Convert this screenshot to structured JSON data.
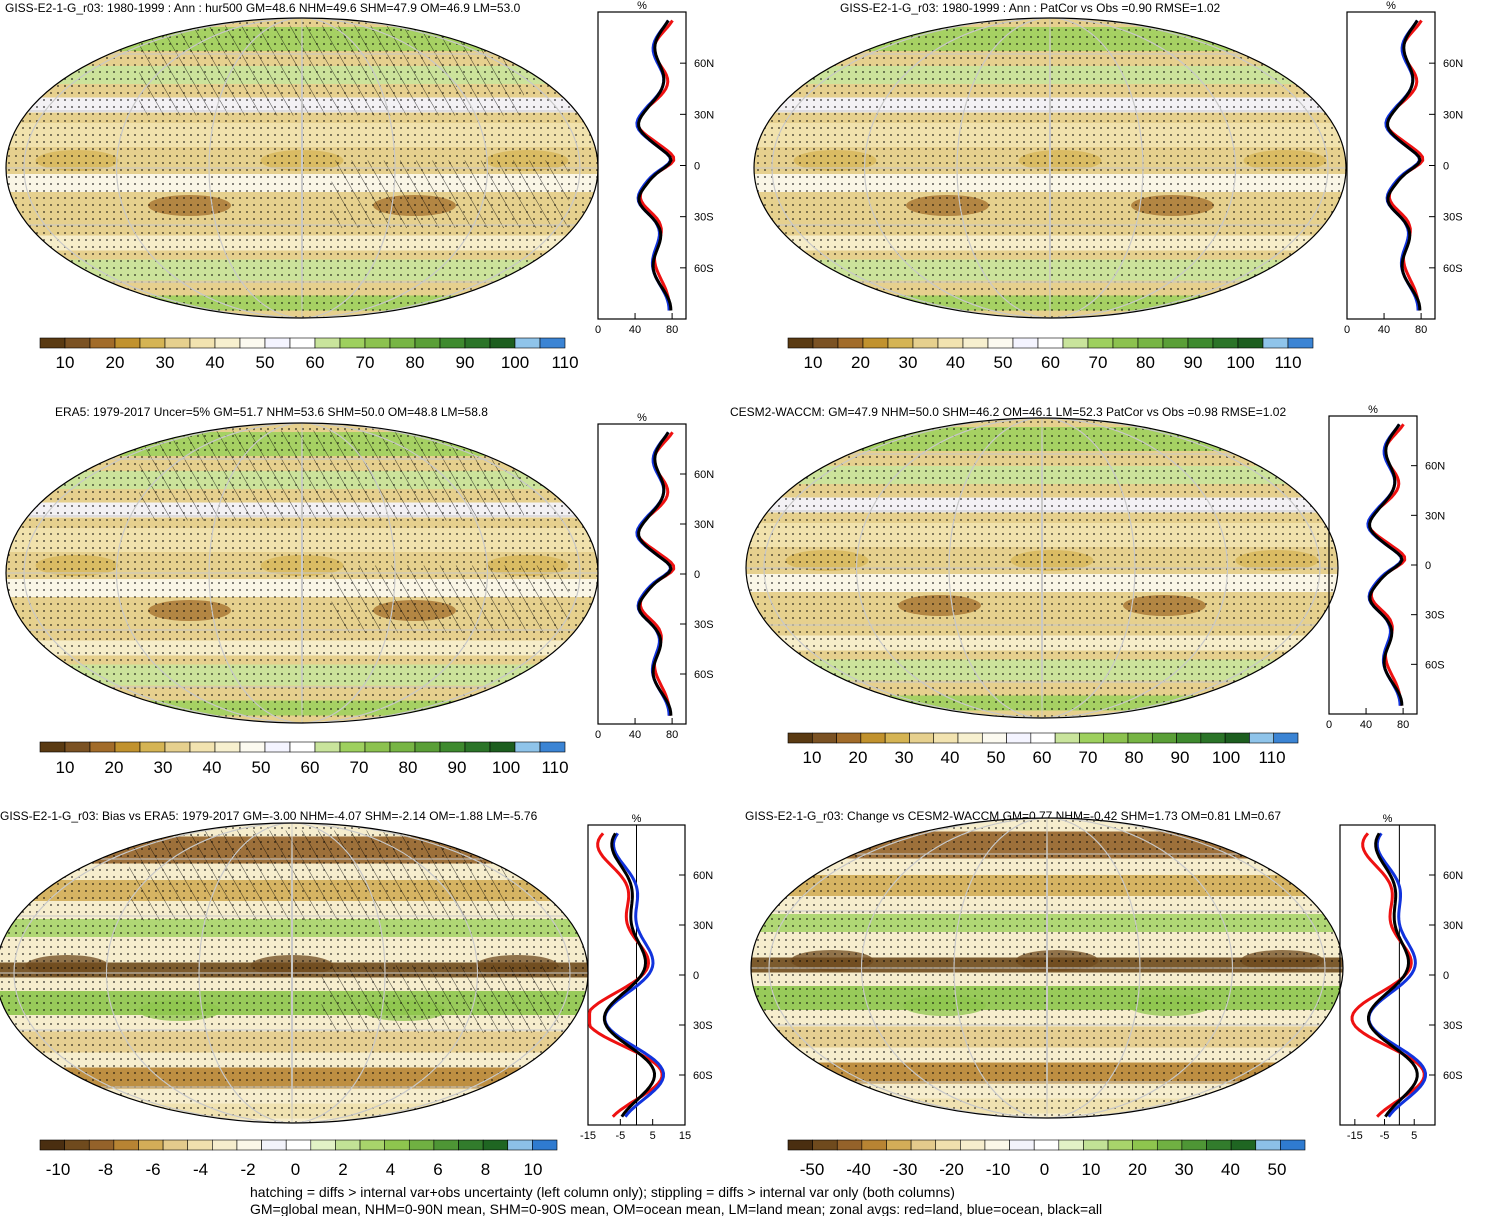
{
  "figure": {
    "footnotes": [
      "hatching = diffs > internal var+obs uncertainty (left column only); stippling = diffs > internal var only (both columns)",
      "GM=global mean, NHM=0-90N mean, SHM=0-90S mean, OM=ocean mean, LM=land mean; zonal avgs: red=land, blue=ocean, black=all"
    ],
    "zonal_series_colors": {
      "land": "#ee1111",
      "ocean": "#1133dd",
      "all": "#000000"
    },
    "zonal_unit": "%",
    "lat_ticks": [
      "60N",
      "30N",
      "0",
      "30S",
      "60S"
    ]
  },
  "chart_data": [
    {
      "type": "heatmap",
      "title": "GISS-E2-1-G_r03: 1980-1999 : Ann : hur500 GM=48.6 NHM=49.6 SHM=47.9 OM=46.9 LM=53.0",
      "colorbar": {
        "labels": [
          "10",
          "20",
          "30",
          "40",
          "50",
          "60",
          "70",
          "80",
          "90",
          "100",
          "110"
        ],
        "palette": "abs"
      },
      "zonal": {
        "xticks": [
          "0",
          "40",
          "80"
        ],
        "xlim": [
          0,
          95
        ]
      }
    },
    {
      "type": "heatmap",
      "title": "GISS-E2-1-G_r03: 1980-1999 : Ann : PatCor vs Obs =0.90 RMSE=1.02",
      "colorbar": {
        "labels": [
          "10",
          "20",
          "30",
          "40",
          "50",
          "60",
          "70",
          "80",
          "90",
          "100",
          "110"
        ],
        "palette": "abs"
      },
      "zonal": {
        "xticks": [
          "0",
          "40",
          "80"
        ],
        "xlim": [
          0,
          95
        ]
      }
    },
    {
      "type": "heatmap",
      "title": "ERA5: 1979-2017 Uncer=5% GM=51.7 NHM=53.6 SHM=50.0 OM=48.8 LM=58.8",
      "colorbar": {
        "labels": [
          "10",
          "20",
          "30",
          "40",
          "50",
          "60",
          "70",
          "80",
          "90",
          "100",
          "110"
        ],
        "palette": "abs"
      },
      "zonal": {
        "xticks": [
          "0",
          "40",
          "80"
        ],
        "xlim": [
          0,
          95
        ]
      }
    },
    {
      "type": "heatmap",
      "title": "CESM2-WACCM: GM=47.9 NHM=50.0 SHM=46.2 OM=46.1 LM=52.3 PatCor vs Obs =0.98 RMSE=1.02",
      "colorbar": {
        "labels": [
          "10",
          "20",
          "30",
          "40",
          "50",
          "60",
          "70",
          "80",
          "90",
          "100",
          "110"
        ],
        "palette": "abs"
      },
      "zonal": {
        "xticks": [
          "0",
          "40",
          "80"
        ],
        "xlim": [
          0,
          95
        ]
      }
    },
    {
      "type": "heatmap",
      "title": "GISS-E2-1-G_r03: Bias vs ERA5: 1979-2017 GM=-3.00 NHM=-4.07 SHM=-2.14 OM=-1.88 LM=-5.76",
      "colorbar": {
        "labels": [
          "-10",
          "-8",
          "-6",
          "-4",
          "-2",
          "0",
          "2",
          "4",
          "6",
          "8",
          "10"
        ],
        "palette": "diff"
      },
      "zonal": {
        "xticks": [
          "-15",
          "-5",
          "5",
          "15"
        ],
        "xlim": [
          -15,
          15
        ]
      }
    },
    {
      "type": "heatmap",
      "title": "GISS-E2-1-G_r03: Change vs CESM2-WACCM GM=0.77 NHM=-0.42 SHM=1.73 OM=0.81 LM=0.67",
      "colorbar": {
        "labels": [
          "-50",
          "-40",
          "-30",
          "-20",
          "-10",
          "0",
          "10",
          "20",
          "30",
          "40",
          "50"
        ],
        "palette": "diff"
      },
      "zonal": {
        "xticks": [
          "-15",
          "-5",
          "5"
        ],
        "xlim": [
          -20,
          12
        ]
      }
    }
  ]
}
